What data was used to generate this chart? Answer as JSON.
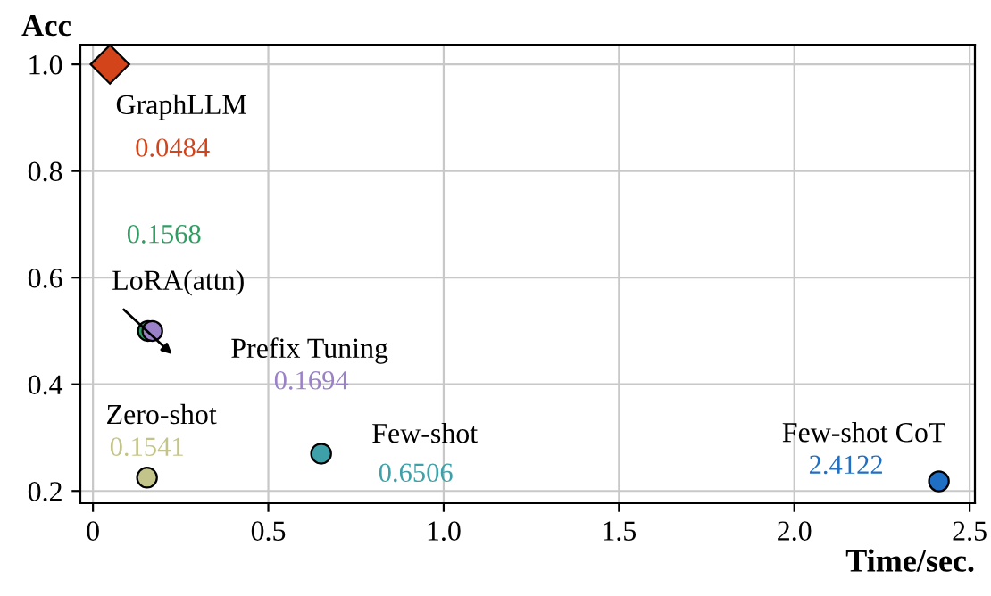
{
  "chart_data": {
    "type": "scatter",
    "xlabel": "Time/sec.",
    "ylabel": "Acc",
    "xlim": [
      -0.036,
      2.515
    ],
    "ylim": [
      0.177,
      1.037
    ],
    "xticks": [
      {
        "value": 0,
        "label": "0"
      },
      0.5,
      {
        "value": 1,
        "label": "1.0"
      },
      1.5,
      {
        "value": 2,
        "label": "2.0"
      },
      2.5
    ],
    "yticks": [
      0.2,
      0.4,
      0.6,
      0.8,
      {
        "value": 1,
        "label": "1.0"
      }
    ],
    "grid": true,
    "legend": false,
    "series": [
      {
        "name": "GraphLLM",
        "color": "#d4441a",
        "marker": "diamond",
        "x": [
          0.0484
        ],
        "values": [
          1.0
        ]
      },
      {
        "name": "LoRA(attn)",
        "color": "#2e9e63",
        "marker": "circle",
        "x": [
          0.1568
        ],
        "values": [
          0.5
        ]
      },
      {
        "name": "Prefix Tuning",
        "color": "#9b82c8",
        "marker": "circle",
        "x": [
          0.1694
        ],
        "values": [
          0.5
        ]
      },
      {
        "name": "Zero-shot",
        "color": "#c2c48a",
        "marker": "circle",
        "x": [
          0.1541
        ],
        "values": [
          0.225
        ]
      },
      {
        "name": "Few-shot",
        "color": "#3ea0a8",
        "marker": "circle",
        "x": [
          0.6506
        ],
        "values": [
          0.27
        ]
      },
      {
        "name": "Few-shot CoT",
        "color": "#1f6fc4",
        "marker": "circle",
        "x": [
          2.4122
        ],
        "values": [
          0.218
        ]
      }
    ],
    "annotations": [
      "0.0484",
      "0.1568",
      "0.1694",
      "0.1541",
      "0.6506",
      "2.4122"
    ]
  }
}
